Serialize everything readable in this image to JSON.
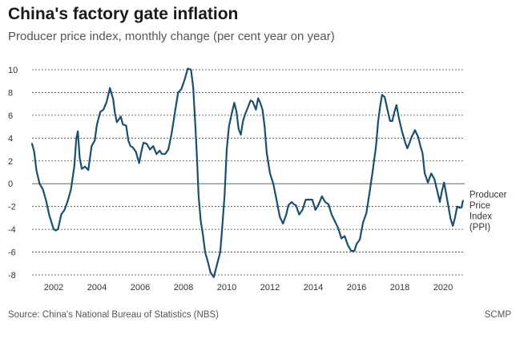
{
  "title": "China's factory gate inflation",
  "subtitle": "Producer price index, monthly change (per cent year on year)",
  "source": "Source: China's National Bureau of Statistics (NBS)",
  "brand": "SCMP",
  "colors": {
    "line": "#1c4f6e",
    "grid": "#444444",
    "zero": "#666666"
  },
  "chart_data": {
    "type": "line",
    "title": "China's factory gate inflation",
    "subtitle": "Producer price index, monthly change (per cent year on year)",
    "xlabel": "",
    "ylabel": "",
    "xlim": [
      2001.0,
      2021.0
    ],
    "ylim": [
      -8,
      10
    ],
    "xticks": [
      2002,
      2004,
      2006,
      2008,
      2010,
      2012,
      2014,
      2016,
      2018,
      2020
    ],
    "yticks": [
      -8,
      -6,
      -4,
      -2,
      0,
      2,
      4,
      6,
      8,
      10
    ],
    "grid": "horizontal dashed",
    "series": [
      {
        "name": "Producer Price Index (PPI)",
        "label_lines": [
          "Producer",
          "Price",
          "Index",
          "(PPI)"
        ],
        "x": [
          2001.0,
          2001.1,
          2001.2,
          2001.35,
          2001.5,
          2001.65,
          2001.8,
          2002.0,
          2002.1,
          2002.2,
          2002.35,
          2002.5,
          2002.65,
          2002.8,
          2002.95,
          2003.05,
          2003.12,
          2003.2,
          2003.3,
          2003.45,
          2003.6,
          2003.75,
          2003.9,
          2004.0,
          2004.15,
          2004.3,
          2004.45,
          2004.6,
          2004.75,
          2004.83,
          2004.92,
          2005.0,
          2005.1,
          2005.2,
          2005.35,
          2005.45,
          2005.55,
          2005.65,
          2005.8,
          2005.95,
          2006.05,
          2006.15,
          2006.3,
          2006.45,
          2006.6,
          2006.75,
          2006.9,
          2007.0,
          2007.15,
          2007.3,
          2007.45,
          2007.6,
          2007.75,
          2007.9,
          2008.05,
          2008.2,
          2008.35,
          2008.45,
          2008.55,
          2008.62,
          2008.7,
          2008.8,
          2008.9,
          2009.0,
          2009.12,
          2009.25,
          2009.4,
          2009.55,
          2009.7,
          2009.8,
          2009.9,
          2010.0,
          2010.1,
          2010.2,
          2010.35,
          2010.45,
          2010.55,
          2010.65,
          2010.75,
          2010.85,
          2011.0,
          2011.1,
          2011.2,
          2011.35,
          2011.45,
          2011.55,
          2011.65,
          2011.75,
          2011.85,
          2012.0,
          2012.15,
          2012.3,
          2012.45,
          2012.6,
          2012.75,
          2012.85,
          2013.0,
          2013.1,
          2013.2,
          2013.35,
          2013.5,
          2013.65,
          2013.8,
          2013.95,
          2014.1,
          2014.25,
          2014.4,
          2014.55,
          2014.7,
          2014.85,
          2015.0,
          2015.15,
          2015.3,
          2015.45,
          2015.6,
          2015.75,
          2015.9,
          2016.0,
          2016.15,
          2016.3,
          2016.45,
          2016.6,
          2016.75,
          2016.9,
          2017.0,
          2017.1,
          2017.18,
          2017.3,
          2017.45,
          2017.55,
          2017.65,
          2017.75,
          2017.85,
          2017.95,
          2018.1,
          2018.25,
          2018.35,
          2018.45,
          2018.55,
          2018.7,
          2018.85,
          2018.95,
          2019.05,
          2019.15,
          2019.3,
          2019.45,
          2019.6,
          2019.75,
          2019.85,
          2019.95,
          2020.05,
          2020.2,
          2020.35,
          2020.45,
          2020.55,
          2020.65,
          2020.75,
          2020.85,
          2020.92
        ],
        "y": [
          3.5,
          2.8,
          1.2,
          0.0,
          -0.5,
          -1.5,
          -2.8,
          -4.0,
          -4.1,
          -4.0,
          -2.7,
          -2.3,
          -1.5,
          -0.5,
          1.5,
          4.0,
          4.6,
          2.3,
          1.3,
          1.5,
          1.2,
          3.3,
          3.8,
          5.2,
          6.3,
          6.5,
          7.2,
          8.4,
          7.4,
          6.2,
          5.4,
          5.6,
          5.9,
          5.2,
          5.1,
          3.8,
          3.3,
          3.2,
          2.8,
          1.8,
          2.8,
          3.6,
          3.5,
          3.0,
          3.3,
          2.6,
          2.9,
          2.6,
          2.6,
          3.0,
          4.4,
          6.2,
          8.0,
          8.3,
          9.1,
          10.1,
          10.0,
          8.4,
          5.1,
          2.5,
          -1.1,
          -3.3,
          -4.5,
          -6.0,
          -6.8,
          -7.8,
          -8.2,
          -7.1,
          -6.0,
          -3.6,
          -1.0,
          3.0,
          5.0,
          5.9,
          7.1,
          6.3,
          4.8,
          4.3,
          5.5,
          6.1,
          6.8,
          7.3,
          7.2,
          6.5,
          7.5,
          7.1,
          6.5,
          5.0,
          2.7,
          0.9,
          0.0,
          -1.4,
          -2.9,
          -3.5,
          -2.7,
          -1.9,
          -1.6,
          -1.8,
          -1.9,
          -2.7,
          -2.3,
          -1.4,
          -1.4,
          -1.4,
          -2.3,
          -1.8,
          -1.1,
          -1.6,
          -1.8,
          -2.7,
          -3.3,
          -3.9,
          -4.8,
          -4.6,
          -5.4,
          -5.9,
          -5.9,
          -5.3,
          -4.9,
          -3.4,
          -2.6,
          -0.8,
          1.2,
          3.3,
          5.5,
          6.9,
          7.8,
          7.6,
          6.3,
          5.5,
          5.5,
          6.3,
          6.9,
          5.8,
          4.6,
          3.6,
          3.1,
          3.6,
          4.1,
          4.7,
          4.1,
          3.3,
          2.7,
          0.9,
          0.1,
          0.9,
          0.4,
          -0.8,
          -1.6,
          -0.6,
          0.1,
          -1.5,
          -3.1,
          -3.7,
          -3.0,
          -2.0,
          -2.1,
          -2.1,
          -1.5
        ]
      }
    ]
  }
}
